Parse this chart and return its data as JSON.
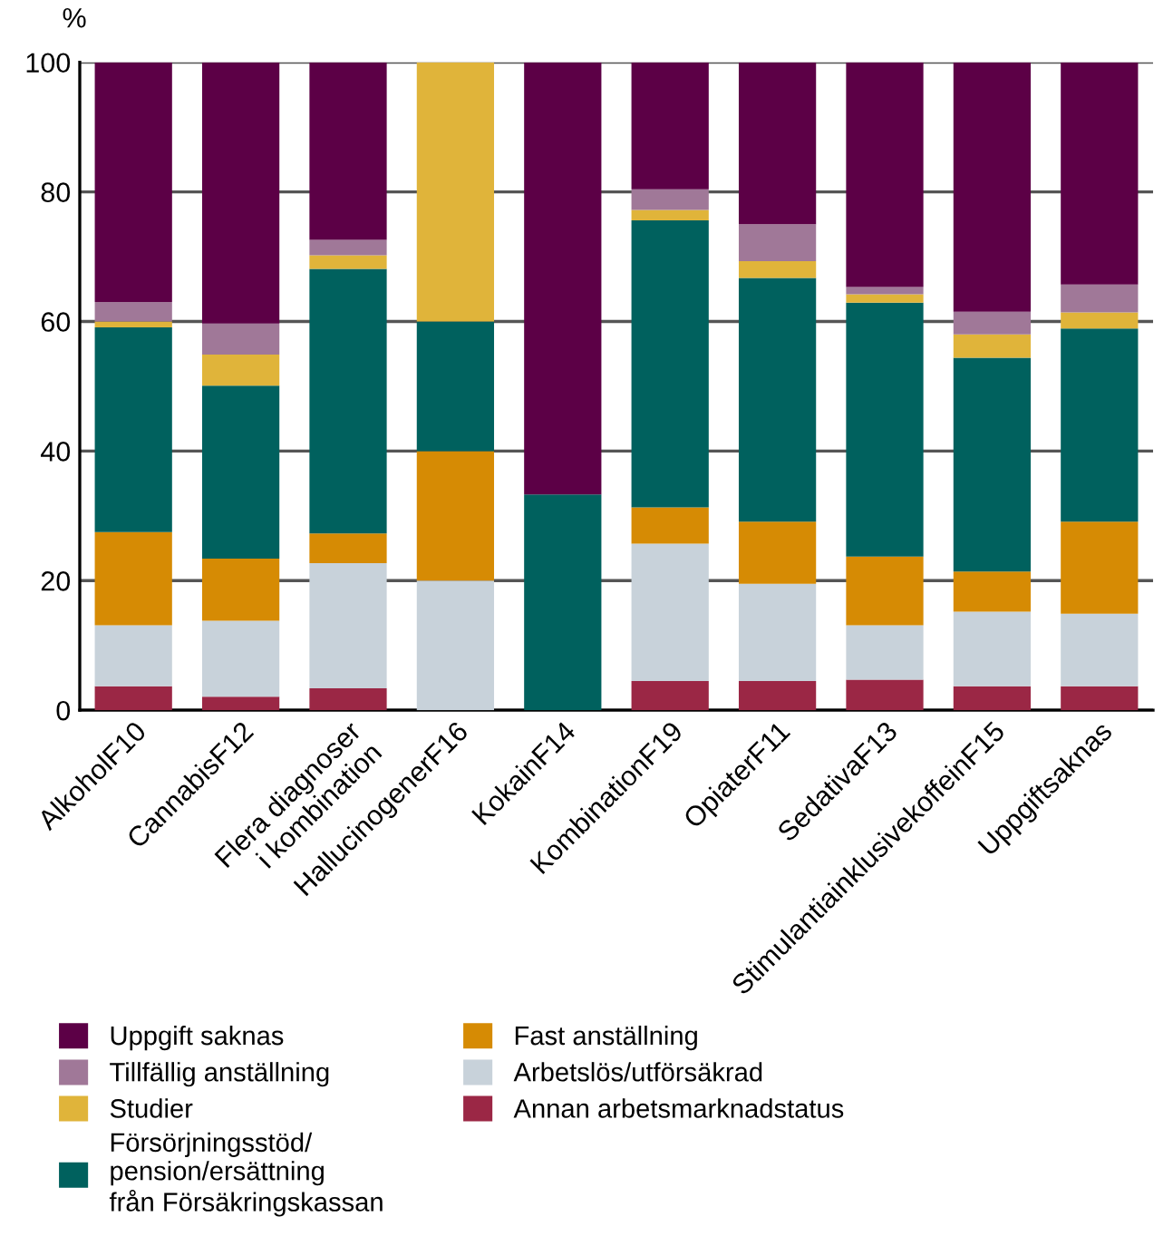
{
  "chart_data": {
    "type": "bar",
    "stacked": true,
    "ylabel": "%",
    "categories": [
      "AlkoholF10",
      "CannabisF12",
      "Flera diagnoser\ni kombination",
      "HallucinogenerF16",
      "KokainF14",
      "KombinationF19",
      "OpiaterF11",
      "SedativaF13",
      "StimulantiainklusivekoffeinF15",
      "Uppgiftsaknas"
    ],
    "series": [
      {
        "name": "Annan arbetsmarknadstatus",
        "color": "#9b2745",
        "values": [
          3.7,
          2.1,
          3.4,
          0,
          0,
          4.5,
          4.5,
          4.7,
          3.7,
          3.7
        ]
      },
      {
        "name": "Arbetslös/utförsäkrad",
        "color": "#c8d2da",
        "values": [
          9.4,
          11.7,
          19.3,
          20,
          0,
          21.2,
          15.0,
          8.4,
          11.5,
          11.2
        ]
      },
      {
        "name": "Fast anställning",
        "color": "#d68b04",
        "values": [
          14.4,
          9.6,
          4.6,
          20,
          0,
          5.6,
          9.6,
          10.6,
          6.2,
          14.2
        ]
      },
      {
        "name": "Försörjningsstöd/\npension/ersättning\nfrån Försäkringskassan",
        "color": "#00615e",
        "values": [
          31.6,
          26.7,
          40.8,
          20,
          33.3,
          44.3,
          37.6,
          39.2,
          33.0,
          29.8
        ]
      },
      {
        "name": "Studier",
        "color": "#e0b43a",
        "values": [
          0.9,
          4.8,
          2.1,
          40,
          0,
          1.6,
          2.6,
          1.3,
          3.6,
          2.5
        ]
      },
      {
        "name": "Tillfällig anställning",
        "color": "#a07898",
        "values": [
          3.0,
          4.8,
          2.4,
          0,
          0,
          3.2,
          5.7,
          1.1,
          3.5,
          4.3
        ]
      },
      {
        "name": "Uppgift saknas",
        "color": "#5c0046",
        "values": [
          37.0,
          40.3,
          27.4,
          0,
          66.7,
          19.6,
          25.0,
          34.7,
          38.5,
          34.3
        ]
      }
    ],
    "ylim": [
      0,
      100
    ],
    "yticks": [
      0,
      20,
      40,
      60,
      80,
      100
    ],
    "grid": "y",
    "legend": "bottom"
  }
}
